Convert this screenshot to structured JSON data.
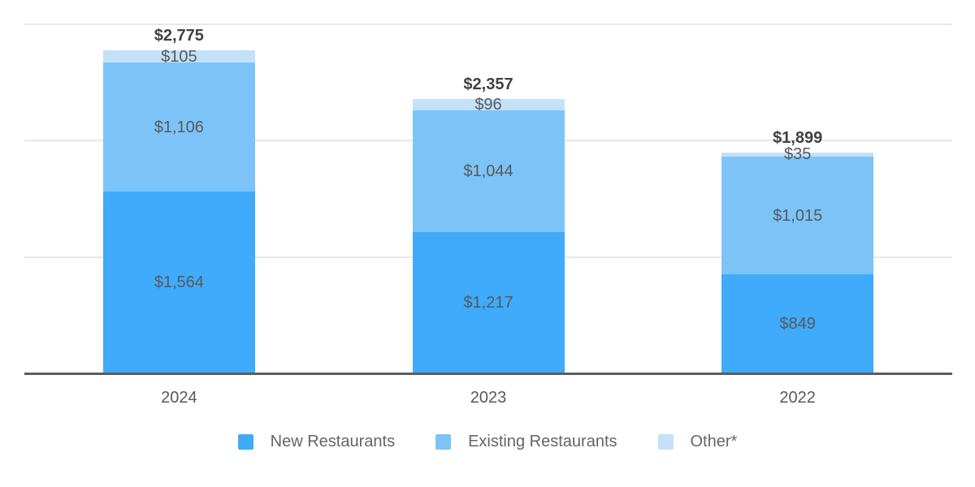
{
  "chart_data": {
    "type": "bar",
    "stacked": true,
    "title": "",
    "xlabel": "",
    "ylabel": "",
    "categories": [
      "2024",
      "2023",
      "2022"
    ],
    "series": [
      {
        "name": "New Restaurants",
        "color": "#3fabfa",
        "values": [
          1564,
          1217,
          849
        ],
        "labels": [
          "$1,564",
          "$1,217",
          "$849"
        ]
      },
      {
        "name": "Existing Restaurants",
        "color": "#7cc4f8",
        "values": [
          1106,
          1044,
          1015
        ],
        "labels": [
          "$1,106",
          "$1,044",
          "$1,015"
        ]
      },
      {
        "name": "Other*",
        "color": "#c3e2f9",
        "values": [
          105,
          96,
          35
        ],
        "labels": [
          "$105",
          "$96",
          "$35"
        ]
      }
    ],
    "totals": [
      2775,
      2357,
      1899
    ],
    "total_labels": [
      "$2,775",
      "$2,357",
      "$1,899"
    ],
    "ylim": [
      0,
      3000
    ],
    "gridline_step": 1000,
    "grid": true,
    "legend_position": "bottom"
  },
  "colors": {
    "segment_label": "#58595b",
    "total_label": "#414143",
    "axis_label": "#58595b",
    "legend_label": "#646567",
    "gridline": "#e8e8e8",
    "axis_line": "#5b5c5e",
    "background": "#ffffff"
  }
}
